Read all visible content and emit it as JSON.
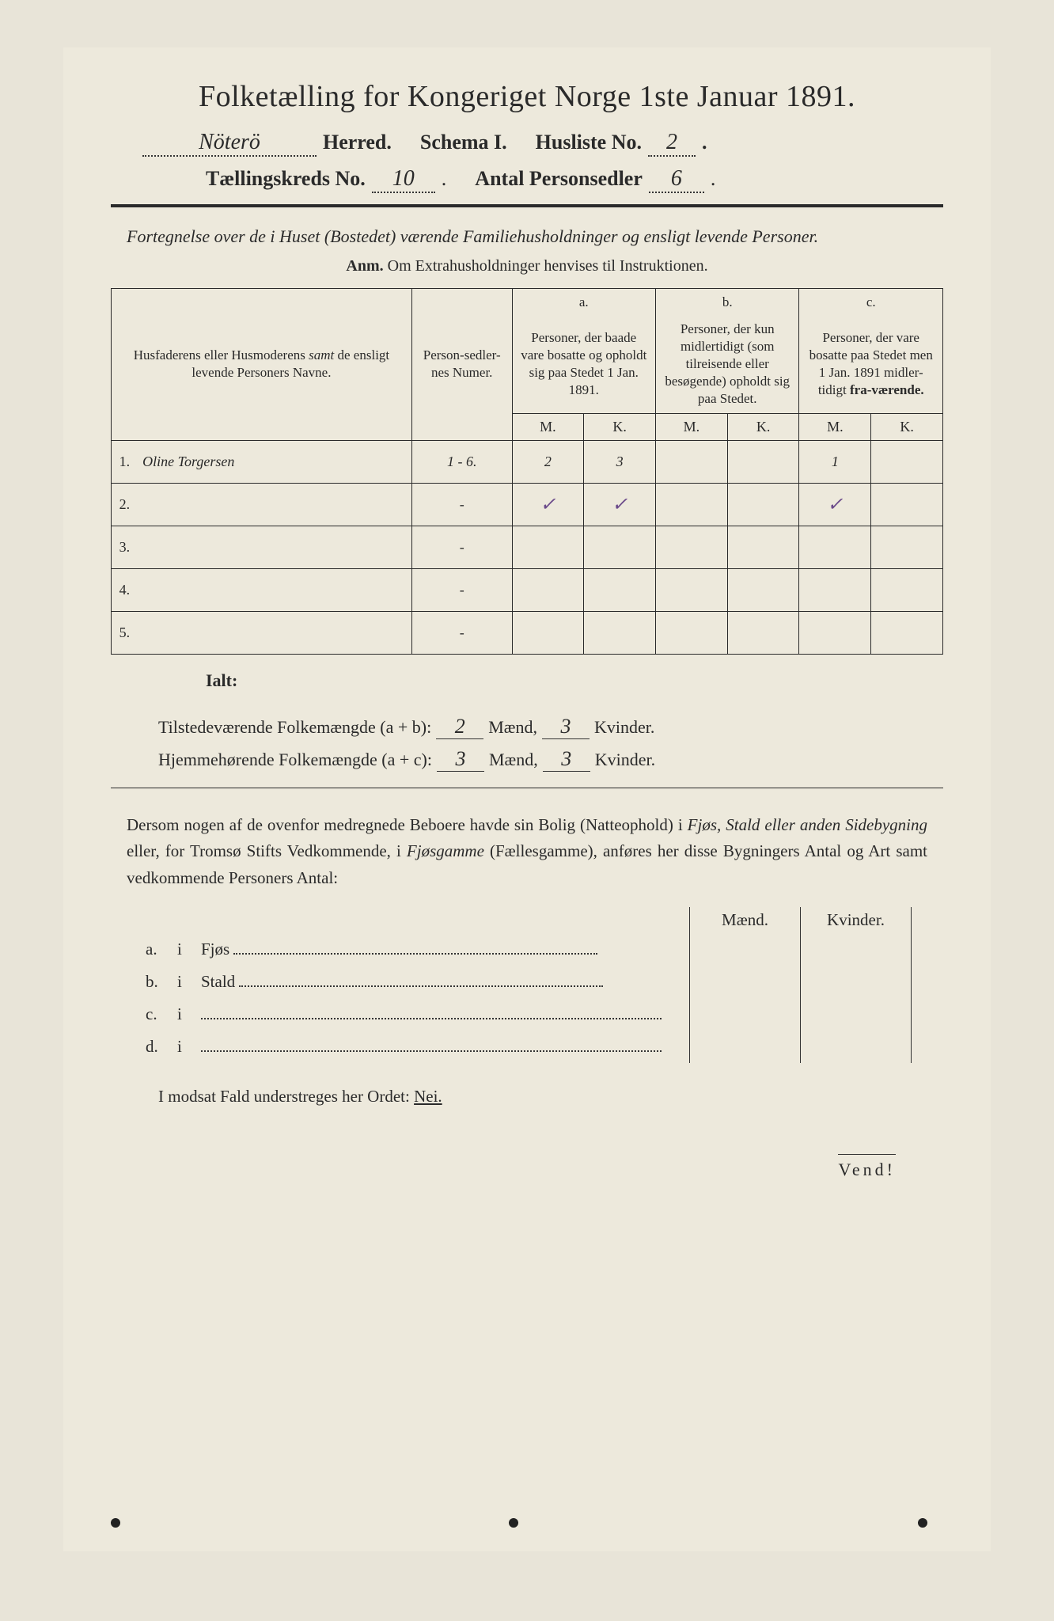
{
  "title": "Folketælling for Kongeriget Norge 1ste Januar 1891.",
  "header": {
    "herred_value": "Nöterö",
    "herred_label": "Herred.",
    "schema_label": "Schema I.",
    "husliste_label": "Husliste No.",
    "husliste_value": "2",
    "kreds_label": "Tællingskreds No.",
    "kreds_value": "10",
    "antal_label": "Antal Personsedler",
    "antal_value": "6"
  },
  "subtitle": "Fortegnelse over de i Huset (Bostedet) værende Familiehusholdninger og ensligt levende Personer.",
  "anm": "Anm. Om Extrahusholdninger henvises til Instruktionen.",
  "table": {
    "col1": "Husfaderens eller Husmoderens samt de ensligt levende Personers Navne.",
    "col2": "Person-sedler-nes Numer.",
    "col_a_label": "a.",
    "col_a": "Personer, der baade vare bosatte og opholdt sig paa Stedet 1 Jan. 1891.",
    "col_b_label": "b.",
    "col_b": "Personer, der kun midlertidigt (som tilreisende eller besøgende) opholdt sig paa Stedet.",
    "col_c_label": "c.",
    "col_c": "Personer, der vare bosatte paa Stedet men 1 Jan. 1891 midlertidigt fraværende.",
    "m": "M.",
    "k": "K.",
    "rows": [
      {
        "n": "1.",
        "name": "Oline Torgersen",
        "num": "1 - 6.",
        "am": "2",
        "ak": "3",
        "bm": "",
        "bk": "",
        "cm": "1",
        "ck": ""
      },
      {
        "n": "2.",
        "name": "",
        "num": "-",
        "am": "✓",
        "ak": "✓",
        "bm": "",
        "bk": "",
        "cm": "✓",
        "ck": ""
      },
      {
        "n": "3.",
        "name": "",
        "num": "-",
        "am": "",
        "ak": "",
        "bm": "",
        "bk": "",
        "cm": "",
        "ck": ""
      },
      {
        "n": "4.",
        "name": "",
        "num": "-",
        "am": "",
        "ak": "",
        "bm": "",
        "bk": "",
        "cm": "",
        "ck": ""
      },
      {
        "n": "5.",
        "name": "",
        "num": "-",
        "am": "",
        "ak": "",
        "bm": "",
        "bk": "",
        "cm": "",
        "ck": ""
      }
    ]
  },
  "totals": {
    "ialt": "Ialt:",
    "line1_label": "Tilstedeværende Folkemængde (a + b):",
    "line1_m": "2",
    "line1_k": "3",
    "line2_label": "Hjemmehørende Folkemængde (a + c):",
    "line2_m": "3",
    "line2_k": "3",
    "maend": "Mænd,",
    "kvinder": "Kvinder."
  },
  "para": {
    "text1": "Dersom nogen af de ovenfor medregnede Beboere havde sin Bolig (Natteophold) i ",
    "italic1": "Fjøs, Stald eller anden Sidebygning",
    "text2": " eller, for Tromsø Stifts Vedkommende, i ",
    "italic2": "Fjøsgamme",
    "text3": " (Fællesgamme), anføres her disse Bygningers Antal og Art samt vedkommende Personers Antal:"
  },
  "bygn": {
    "maend": "Mænd.",
    "kvinder": "Kvinder.",
    "rows": [
      {
        "letter": "a.",
        "i": "i",
        "label": "Fjøs"
      },
      {
        "letter": "b.",
        "i": "i",
        "label": "Stald"
      },
      {
        "letter": "c.",
        "i": "i",
        "label": ""
      },
      {
        "letter": "d.",
        "i": "i",
        "label": ""
      }
    ]
  },
  "nei": {
    "text": "I modsat Fald understreges her Ordet: ",
    "word": "Nei."
  },
  "vend": "Vend!",
  "colors": {
    "paper": "#ede9dc",
    "ink": "#2a2a2a",
    "purple_check": "#6b4a8a"
  }
}
